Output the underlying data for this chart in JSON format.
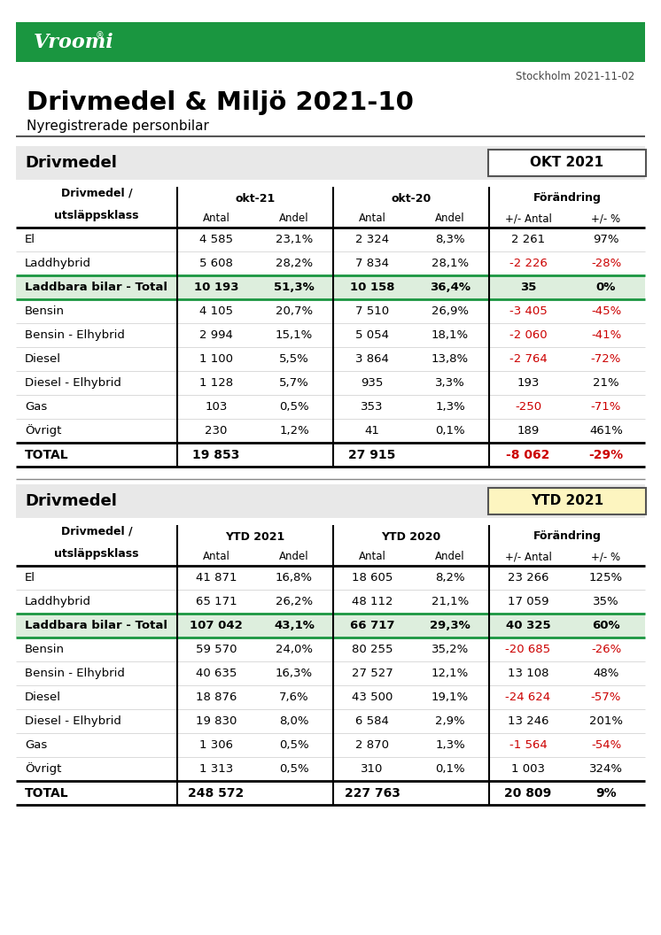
{
  "title": "Drivmedel & Miljö 2021-10",
  "subtitle": "Nyregistrerade personbilar",
  "date_text": "Stockholm 2021-11-02",
  "green_color": "#1a9640",
  "header_bg": "#e8e8e8",
  "light_green_bg": "#ddeedd",
  "okt_badge_color": "#ffffff",
  "ytd_badge_color": "#fdf5c0",
  "red_color": "#cc0000",
  "table1": {
    "badge": "OKT 2021",
    "section_title": "Drivmedel",
    "col_groups": [
      "okt-21",
      "okt-20",
      "Förändring"
    ],
    "col_sub": [
      "Antal",
      "Andel",
      "Antal",
      "Andel",
      "+/- Antal",
      "+/- %"
    ],
    "rows": [
      {
        "label": "El",
        "v1": "4 585",
        "v2": "23,1%",
        "v3": "2 324",
        "v4": "8,3%",
        "v5": "2 261",
        "v6": "97%",
        "red5": false,
        "red6": false,
        "bold": false,
        "green_bg": false
      },
      {
        "label": "Laddhybrid",
        "v1": "5 608",
        "v2": "28,2%",
        "v3": "7 834",
        "v4": "28,1%",
        "v5": "-2 226",
        "v6": "-28%",
        "red5": true,
        "red6": true,
        "bold": false,
        "green_bg": false
      },
      {
        "label": "Laddbara bilar - Total",
        "v1": "10 193",
        "v2": "51,3%",
        "v3": "10 158",
        "v4": "36,4%",
        "v5": "35",
        "v6": "0%",
        "red5": false,
        "red6": false,
        "bold": true,
        "green_bg": true
      },
      {
        "label": "Bensin",
        "v1": "4 105",
        "v2": "20,7%",
        "v3": "7 510",
        "v4": "26,9%",
        "v5": "-3 405",
        "v6": "-45%",
        "red5": true,
        "red6": true,
        "bold": false,
        "green_bg": false
      },
      {
        "label": "Bensin - Elhybrid",
        "v1": "2 994",
        "v2": "15,1%",
        "v3": "5 054",
        "v4": "18,1%",
        "v5": "-2 060",
        "v6": "-41%",
        "red5": true,
        "red6": true,
        "bold": false,
        "green_bg": false
      },
      {
        "label": "Diesel",
        "v1": "1 100",
        "v2": "5,5%",
        "v3": "3 864",
        "v4": "13,8%",
        "v5": "-2 764",
        "v6": "-72%",
        "red5": true,
        "red6": true,
        "bold": false,
        "green_bg": false
      },
      {
        "label": "Diesel - Elhybrid",
        "v1": "1 128",
        "v2": "5,7%",
        "v3": "935",
        "v4": "3,3%",
        "v5": "193",
        "v6": "21%",
        "red5": false,
        "red6": false,
        "bold": false,
        "green_bg": false
      },
      {
        "label": "Gas",
        "v1": "103",
        "v2": "0,5%",
        "v3": "353",
        "v4": "1,3%",
        "v5": "-250",
        "v6": "-71%",
        "red5": true,
        "red6": true,
        "bold": false,
        "green_bg": false
      },
      {
        "label": "Övrigt",
        "v1": "230",
        "v2": "1,2%",
        "v3": "41",
        "v4": "0,1%",
        "v5": "189",
        "v6": "461%",
        "red5": false,
        "red6": false,
        "bold": false,
        "green_bg": false
      }
    ],
    "total": {
      "label": "TOTAL",
      "v1": "19 853",
      "v2": "",
      "v3": "27 915",
      "v4": "",
      "v5": "-8 062",
      "v6": "-29%",
      "red5": true,
      "red6": true
    }
  },
  "table2": {
    "badge": "YTD 2021",
    "section_title": "Drivmedel",
    "col_groups": [
      "YTD 2021",
      "YTD 2020",
      "Förändring"
    ],
    "col_sub": [
      "Antal",
      "Andel",
      "Antal",
      "Andel",
      "+/- Antal",
      "+/- %"
    ],
    "rows": [
      {
        "label": "El",
        "v1": "41 871",
        "v2": "16,8%",
        "v3": "18 605",
        "v4": "8,2%",
        "v5": "23 266",
        "v6": "125%",
        "red5": false,
        "red6": false,
        "bold": false,
        "green_bg": false
      },
      {
        "label": "Laddhybrid",
        "v1": "65 171",
        "v2": "26,2%",
        "v3": "48 112",
        "v4": "21,1%",
        "v5": "17 059",
        "v6": "35%",
        "red5": false,
        "red6": false,
        "bold": false,
        "green_bg": false
      },
      {
        "label": "Laddbara bilar - Total",
        "v1": "107 042",
        "v2": "43,1%",
        "v3": "66 717",
        "v4": "29,3%",
        "v5": "40 325",
        "v6": "60%",
        "red5": false,
        "red6": false,
        "bold": true,
        "green_bg": true
      },
      {
        "label": "Bensin",
        "v1": "59 570",
        "v2": "24,0%",
        "v3": "80 255",
        "v4": "35,2%",
        "v5": "-20 685",
        "v6": "-26%",
        "red5": true,
        "red6": true,
        "bold": false,
        "green_bg": false
      },
      {
        "label": "Bensin - Elhybrid",
        "v1": "40 635",
        "v2": "16,3%",
        "v3": "27 527",
        "v4": "12,1%",
        "v5": "13 108",
        "v6": "48%",
        "red5": false,
        "red6": false,
        "bold": false,
        "green_bg": false
      },
      {
        "label": "Diesel",
        "v1": "18 876",
        "v2": "7,6%",
        "v3": "43 500",
        "v4": "19,1%",
        "v5": "-24 624",
        "v6": "-57%",
        "red5": true,
        "red6": true,
        "bold": false,
        "green_bg": false
      },
      {
        "label": "Diesel - Elhybrid",
        "v1": "19 830",
        "v2": "8,0%",
        "v3": "6 584",
        "v4": "2,9%",
        "v5": "13 246",
        "v6": "201%",
        "red5": false,
        "red6": false,
        "bold": false,
        "green_bg": false
      },
      {
        "label": "Gas",
        "v1": "1 306",
        "v2": "0,5%",
        "v3": "2 870",
        "v4": "1,3%",
        "v5": "-1 564",
        "v6": "-54%",
        "red5": true,
        "red6": true,
        "bold": false,
        "green_bg": false
      },
      {
        "label": "Övrigt",
        "v1": "1 313",
        "v2": "0,5%",
        "v3": "310",
        "v4": "0,1%",
        "v5": "1 003",
        "v6": "324%",
        "red5": false,
        "red6": false,
        "bold": false,
        "green_bg": false
      }
    ],
    "total": {
      "label": "TOTAL",
      "v1": "248 572",
      "v2": "",
      "v3": "227 763",
      "v4": "",
      "v5": "20 809",
      "v6": "9%",
      "red5": false,
      "red6": false
    }
  }
}
